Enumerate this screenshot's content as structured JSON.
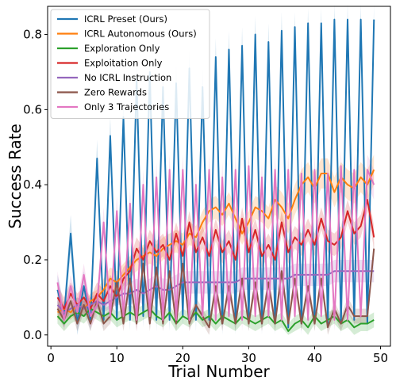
{
  "chart_data": {
    "type": "line",
    "title": "",
    "xlabel": "Trial Number",
    "ylabel": "Success Rate",
    "xlim": [
      -0.5,
      51.5
    ],
    "ylim": [
      -0.03,
      0.875
    ],
    "x_ticks": [
      0,
      10,
      20,
      30,
      40,
      50
    ],
    "y_ticks": [
      0.0,
      0.2,
      0.4,
      0.6,
      0.8
    ],
    "legend_position": "top-left",
    "grid": false,
    "x": [
      1,
      2,
      3,
      4,
      5,
      6,
      7,
      8,
      9,
      10,
      11,
      12,
      13,
      14,
      15,
      16,
      17,
      18,
      19,
      20,
      21,
      22,
      23,
      24,
      25,
      26,
      27,
      28,
      29,
      30,
      31,
      32,
      33,
      34,
      35,
      36,
      37,
      38,
      39,
      40,
      41,
      42,
      43,
      44,
      45,
      46,
      47,
      48,
      49
    ],
    "series": [
      {
        "name": "ICRL Preset (Ours)",
        "color": "#1f77b4",
        "values": [
          0.12,
          0.05,
          0.27,
          0.03,
          0.13,
          0.04,
          0.47,
          0.04,
          0.53,
          0.04,
          0.58,
          0.04,
          0.68,
          0.05,
          0.7,
          0.04,
          0.66,
          0.04,
          0.67,
          0.05,
          0.71,
          0.04,
          0.66,
          0.04,
          0.74,
          0.03,
          0.76,
          0.03,
          0.77,
          0.04,
          0.8,
          0.03,
          0.78,
          0.03,
          0.81,
          0.02,
          0.82,
          0.03,
          0.83,
          0.04,
          0.83,
          0.03,
          0.84,
          0.03,
          0.84,
          0.04,
          0.84,
          0.03,
          0.84
        ],
        "band": [
          0.04,
          0.03,
          0.05,
          0.03,
          0.04,
          0.03,
          0.05,
          0.03,
          0.05,
          0.03,
          0.05,
          0.03,
          0.05,
          0.03,
          0.05,
          0.03,
          0.05,
          0.03,
          0.05,
          0.03,
          0.05,
          0.03,
          0.05,
          0.03,
          0.05,
          0.03,
          0.05,
          0.03,
          0.05,
          0.03,
          0.05,
          0.03,
          0.05,
          0.03,
          0.05,
          0.03,
          0.04,
          0.03,
          0.04,
          0.03,
          0.04,
          0.03,
          0.04,
          0.03,
          0.04,
          0.03,
          0.04,
          0.03,
          0.04
        ]
      },
      {
        "name": "ICRL Autonomous (Ours)",
        "color": "#ff7f0e",
        "values": [
          0.06,
          0.07,
          0.06,
          0.08,
          0.07,
          0.09,
          0.1,
          0.12,
          0.15,
          0.14,
          0.16,
          0.18,
          0.2,
          0.21,
          0.22,
          0.21,
          0.23,
          0.24,
          0.25,
          0.24,
          0.27,
          0.26,
          0.3,
          0.33,
          0.34,
          0.32,
          0.35,
          0.31,
          0.27,
          0.3,
          0.34,
          0.33,
          0.31,
          0.36,
          0.34,
          0.31,
          0.36,
          0.4,
          0.42,
          0.39,
          0.43,
          0.43,
          0.38,
          0.42,
          0.4,
          0.39,
          0.42,
          0.4,
          0.44
        ],
        "band": [
          0.02,
          0.02,
          0.02,
          0.02,
          0.02,
          0.02,
          0.02,
          0.03,
          0.03,
          0.03,
          0.03,
          0.03,
          0.03,
          0.03,
          0.03,
          0.03,
          0.03,
          0.03,
          0.03,
          0.03,
          0.03,
          0.03,
          0.03,
          0.03,
          0.03,
          0.03,
          0.03,
          0.03,
          0.03,
          0.03,
          0.03,
          0.03,
          0.03,
          0.04,
          0.04,
          0.04,
          0.04,
          0.04,
          0.04,
          0.04,
          0.04,
          0.04,
          0.04,
          0.04,
          0.04,
          0.04,
          0.04,
          0.04,
          0.04
        ]
      },
      {
        "name": "Exploration Only",
        "color": "#2ca02c",
        "values": [
          0.05,
          0.03,
          0.05,
          0.06,
          0.05,
          0.07,
          0.06,
          0.05,
          0.06,
          0.04,
          0.05,
          0.06,
          0.05,
          0.06,
          0.07,
          0.05,
          0.04,
          0.06,
          0.03,
          0.05,
          0.04,
          0.06,
          0.04,
          0.05,
          0.03,
          0.05,
          0.04,
          0.03,
          0.05,
          0.04,
          0.03,
          0.04,
          0.05,
          0.03,
          0.04,
          0.01,
          0.03,
          0.04,
          0.02,
          0.05,
          0.03,
          0.04,
          0.05,
          0.03,
          0.04,
          0.02,
          0.03,
          0.03,
          0.04
        ],
        "band": [
          0.02,
          0.02,
          0.02,
          0.02,
          0.02,
          0.02,
          0.02,
          0.02,
          0.02,
          0.02,
          0.02,
          0.02,
          0.02,
          0.02,
          0.02,
          0.02,
          0.02,
          0.02,
          0.02,
          0.02,
          0.02,
          0.02,
          0.02,
          0.02,
          0.02,
          0.02,
          0.02,
          0.02,
          0.02,
          0.02,
          0.02,
          0.02,
          0.02,
          0.02,
          0.02,
          0.02,
          0.02,
          0.02,
          0.02,
          0.02,
          0.02,
          0.02,
          0.02,
          0.02,
          0.02,
          0.02,
          0.02,
          0.02,
          0.02
        ]
      },
      {
        "name": "Exploitation Only",
        "color": "#d62728",
        "values": [
          0.1,
          0.07,
          0.11,
          0.08,
          0.1,
          0.07,
          0.11,
          0.09,
          0.13,
          0.1,
          0.15,
          0.17,
          0.23,
          0.2,
          0.25,
          0.22,
          0.24,
          0.2,
          0.27,
          0.21,
          0.3,
          0.22,
          0.26,
          0.21,
          0.28,
          0.22,
          0.25,
          0.2,
          0.31,
          0.22,
          0.28,
          0.21,
          0.24,
          0.2,
          0.3,
          0.22,
          0.26,
          0.24,
          0.28,
          0.24,
          0.31,
          0.25,
          0.24,
          0.26,
          0.33,
          0.27,
          0.29,
          0.36,
          0.26
        ],
        "band": [
          0.03,
          0.03,
          0.03,
          0.03,
          0.03,
          0.03,
          0.03,
          0.03,
          0.03,
          0.03,
          0.03,
          0.03,
          0.03,
          0.03,
          0.03,
          0.03,
          0.03,
          0.03,
          0.03,
          0.03,
          0.03,
          0.03,
          0.03,
          0.03,
          0.03,
          0.03,
          0.03,
          0.03,
          0.03,
          0.03,
          0.03,
          0.03,
          0.03,
          0.03,
          0.03,
          0.03,
          0.03,
          0.03,
          0.03,
          0.03,
          0.03,
          0.03,
          0.03,
          0.03,
          0.03,
          0.03,
          0.03,
          0.03,
          0.03
        ]
      },
      {
        "name": "No ICRL Instruction",
        "color": "#9467bd",
        "values": [
          0.08,
          0.06,
          0.07,
          0.08,
          0.07,
          0.08,
          0.09,
          0.08,
          0.09,
          0.1,
          0.11,
          0.11,
          0.12,
          0.11,
          0.12,
          0.13,
          0.12,
          0.12,
          0.13,
          0.14,
          0.14,
          0.14,
          0.14,
          0.14,
          0.14,
          0.14,
          0.14,
          0.14,
          0.15,
          0.15,
          0.15,
          0.15,
          0.15,
          0.15,
          0.15,
          0.15,
          0.16,
          0.16,
          0.16,
          0.16,
          0.16,
          0.16,
          0.17,
          0.17,
          0.17,
          0.17,
          0.17,
          0.17,
          0.17
        ],
        "band": [
          0.02,
          0.02,
          0.02,
          0.02,
          0.02,
          0.02,
          0.02,
          0.02,
          0.02,
          0.02,
          0.03,
          0.03,
          0.03,
          0.03,
          0.03,
          0.03,
          0.03,
          0.03,
          0.03,
          0.03,
          0.03,
          0.03,
          0.03,
          0.03,
          0.03,
          0.03,
          0.03,
          0.03,
          0.03,
          0.03,
          0.03,
          0.03,
          0.03,
          0.03,
          0.03,
          0.03,
          0.03,
          0.03,
          0.03,
          0.03,
          0.03,
          0.03,
          0.03,
          0.03,
          0.03,
          0.03,
          0.03,
          0.03,
          0.03
        ]
      },
      {
        "name": "Zero Rewards",
        "color": "#8c564b",
        "values": [
          0.07,
          0.04,
          0.09,
          0.03,
          0.08,
          0.03,
          0.09,
          0.03,
          0.05,
          0.14,
          0.03,
          0.15,
          0.03,
          0.19,
          0.03,
          0.18,
          0.03,
          0.17,
          0.03,
          0.19,
          0.03,
          0.08,
          0.05,
          0.02,
          0.13,
          0.03,
          0.13,
          0.03,
          0.15,
          0.03,
          0.14,
          0.03,
          0.14,
          0.03,
          0.17,
          0.03,
          0.15,
          0.03,
          0.13,
          0.03,
          0.15,
          0.02,
          0.07,
          0.03,
          0.08,
          0.05,
          0.05,
          0.05,
          0.23
        ],
        "band": [
          0.02,
          0.02,
          0.02,
          0.02,
          0.02,
          0.02,
          0.02,
          0.02,
          0.02,
          0.02,
          0.02,
          0.02,
          0.02,
          0.02,
          0.02,
          0.02,
          0.02,
          0.02,
          0.02,
          0.02,
          0.02,
          0.02,
          0.02,
          0.02,
          0.02,
          0.02,
          0.02,
          0.02,
          0.02,
          0.02,
          0.02,
          0.02,
          0.02,
          0.02,
          0.02,
          0.02,
          0.02,
          0.02,
          0.02,
          0.02,
          0.02,
          0.02,
          0.02,
          0.02,
          0.02,
          0.02,
          0.02,
          0.02,
          0.02
        ]
      },
      {
        "name": "Only 3 Trajectories",
        "color": "#e377c2",
        "values": [
          0.14,
          0.04,
          0.13,
          0.06,
          0.16,
          0.05,
          0.08,
          0.3,
          0.05,
          0.33,
          0.05,
          0.35,
          0.04,
          0.4,
          0.05,
          0.42,
          0.04,
          0.44,
          0.04,
          0.44,
          0.04,
          0.4,
          0.05,
          0.44,
          0.04,
          0.42,
          0.05,
          0.44,
          0.04,
          0.45,
          0.05,
          0.42,
          0.05,
          0.44,
          0.04,
          0.44,
          0.05,
          0.43,
          0.04,
          0.44,
          0.05,
          0.43,
          0.04,
          0.45,
          0.04,
          0.44,
          0.05,
          0.44,
          0.4
        ],
        "band": [
          0.03,
          0.03,
          0.03,
          0.03,
          0.03,
          0.03,
          0.03,
          0.04,
          0.03,
          0.04,
          0.03,
          0.04,
          0.03,
          0.04,
          0.03,
          0.04,
          0.03,
          0.04,
          0.03,
          0.04,
          0.03,
          0.04,
          0.03,
          0.04,
          0.03,
          0.04,
          0.03,
          0.04,
          0.03,
          0.04,
          0.03,
          0.04,
          0.03,
          0.04,
          0.03,
          0.04,
          0.03,
          0.04,
          0.03,
          0.04,
          0.03,
          0.04,
          0.03,
          0.04,
          0.03,
          0.04,
          0.03,
          0.04,
          0.04
        ]
      }
    ]
  }
}
